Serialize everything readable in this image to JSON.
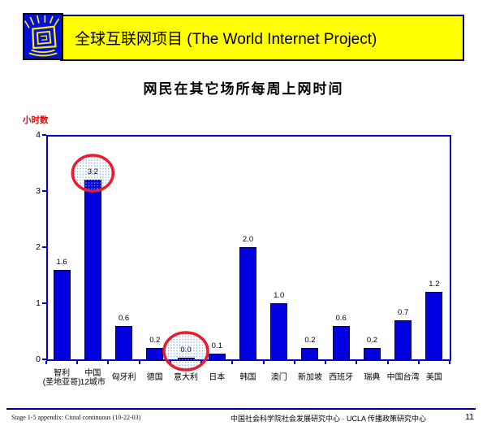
{
  "header": {
    "title": "全球互联网项目 (The World Internet Project)",
    "logo_icon": "radiating-monitor-icon"
  },
  "chart_data": {
    "type": "bar",
    "title": "网民在其它场所每周上网时间",
    "xlabel": "",
    "ylabel": "小时数",
    "ylim": [
      0,
      4
    ],
    "y_ticks": [
      0,
      1,
      2,
      3,
      4
    ],
    "grid": false,
    "legend": "none",
    "bar_color": "#0000e0",
    "axis_color": "#0000c8",
    "categories": [
      "智利 (圣地亚哥)",
      "中国 12城市",
      "匈牙利",
      "德国",
      "意大利",
      "日本",
      "韩国",
      "澳门",
      "新加坡",
      "西班牙",
      "瑞典",
      "中国台湾",
      "美国"
    ],
    "values": [
      1.6,
      3.2,
      0.6,
      0.2,
      0.0,
      0.1,
      2.0,
      1.0,
      0.2,
      0.6,
      0.2,
      0.7,
      1.2
    ],
    "value_labels": [
      "1.6",
      "3.2",
      "0.6",
      "0.2",
      "0.0",
      "0.1",
      "2.0",
      "1.0",
      "0.2",
      "0.6",
      "0.2",
      "0.7",
      "1.2"
    ],
    "highlights": [
      {
        "category": "中国 12城市",
        "index": 1,
        "marker": "red-dotted-ellipse"
      },
      {
        "category": "意大利",
        "index": 4,
        "marker": "red-dotted-ellipse"
      }
    ],
    "highlight_stroke_color": "#ea1c2c",
    "highlight_dot_color": "#7fa8f0"
  },
  "footer": {
    "left": "Stage 1-5 appendix: Ctotal continuous (10-22-03)",
    "center": "中国社会科学院社会发展研究中心 · UCLA 传播政策研究中心",
    "page": "11"
  }
}
